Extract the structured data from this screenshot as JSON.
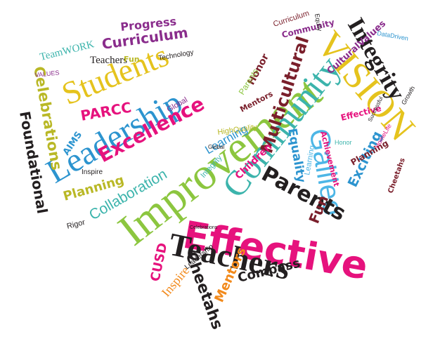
{
  "title": "",
  "palette": {
    "magenta": "#e6127d",
    "pink": "#f0509c",
    "olive": "#b9b826",
    "green": "#8cc63f",
    "teal": "#3cb4ac",
    "blue": "#2c94cf",
    "lightblue": "#4db6e6",
    "purple": "#8a2d8c",
    "darkred": "#7a1f2b",
    "black": "#231f20",
    "orange": "#f28a1c",
    "yellow": "#e5c31d"
  },
  "words": [
    "Improvement",
    "Community",
    "Effective",
    "Teachers",
    "Leadership",
    "Students",
    "VISION",
    "Integrity",
    "Galileo",
    "Parents",
    "Excellence",
    "Multicultural",
    "Cheetahs",
    "Curriculum",
    "Progress",
    "Celebrations",
    "Foundational",
    "Planning",
    "Collaboration",
    "PARCC",
    "Equality",
    "Exciting",
    "Fun",
    "Mentors",
    "Compass",
    "Inspire",
    "Learning",
    "Children",
    "CUSD",
    "TeamWORK",
    "Teachers",
    "Technology",
    "Honor",
    "CulturalValues",
    "DataDriven",
    "Curriculum",
    "Community",
    "Equity",
    "AIMS",
    "HighQuality",
    "Celebrations",
    "Global",
    "Rigor",
    "VALUES",
    "Achievement",
    "Effective",
    "Planning",
    "Cheetahs",
    "Growth",
    "HomeLife",
    "Integrity",
    "Successful",
    "Parents",
    "Leadership",
    "Fun",
    "Global",
    "Mentors",
    "Honor",
    "Inspire",
    "Learning"
  ]
}
